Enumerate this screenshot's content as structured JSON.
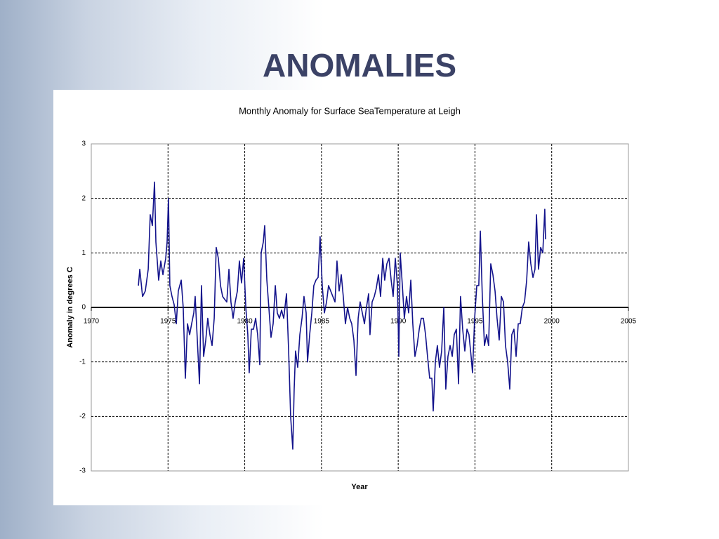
{
  "slide": {
    "title": "ANOMALIES"
  },
  "chart_data": {
    "type": "line",
    "title": "Monthly Anomaly for Surface SeaTemperature at Leigh",
    "x_label": "Year",
    "y_label": "Anomaly in degrees C",
    "xlim": [
      1970,
      2005
    ],
    "xticks": [
      1970,
      1975,
      1980,
      1985,
      1990,
      1995,
      2000,
      2005
    ],
    "ylim": [
      -3,
      3
    ],
    "yticks": [
      -3,
      -2,
      -1,
      0,
      1,
      2,
      3
    ],
    "grid": true,
    "x": [
      1973.07,
      1973.16,
      1973.34,
      1973.52,
      1973.71,
      1973.84,
      1973.98,
      1974.12,
      1974.21,
      1974.39,
      1974.53,
      1974.67,
      1974.85,
      1974.94,
      1975.03,
      1975.12,
      1975.26,
      1975.4,
      1975.54,
      1975.67,
      1975.86,
      1975.99,
      1976.13,
      1976.27,
      1976.41,
      1976.54,
      1976.68,
      1976.77,
      1976.91,
      1977.05,
      1977.18,
      1977.32,
      1977.46,
      1977.59,
      1977.73,
      1977.87,
      1978.01,
      1978.14,
      1978.28,
      1978.42,
      1978.56,
      1978.69,
      1978.83,
      1978.97,
      1979.1,
      1979.24,
      1979.38,
      1979.52,
      1979.65,
      1979.79,
      1979.93,
      1980.07,
      1980.2,
      1980.29,
      1980.43,
      1980.57,
      1980.71,
      1980.84,
      1980.98,
      1981.07,
      1981.21,
      1981.3,
      1981.44,
      1981.57,
      1981.71,
      1981.85,
      1981.99,
      1982.12,
      1982.26,
      1982.4,
      1982.54,
      1982.72,
      1982.86,
      1982.99,
      1983.13,
      1983.22,
      1983.31,
      1983.45,
      1983.59,
      1983.73,
      1983.86,
      1984.0,
      1984.09,
      1984.23,
      1984.37,
      1984.5,
      1984.64,
      1984.78,
      1984.91,
      1985.05,
      1985.19,
      1985.33,
      1985.46,
      1985.6,
      1985.74,
      1985.88,
      1986.01,
      1986.15,
      1986.29,
      1986.42,
      1986.56,
      1986.7,
      1986.84,
      1986.97,
      1987.11,
      1987.25,
      1987.39,
      1987.52,
      1987.66,
      1987.8,
      1987.93,
      1988.07,
      1988.16,
      1988.3,
      1988.44,
      1988.57,
      1988.71,
      1988.85,
      1988.99,
      1989.12,
      1989.26,
      1989.4,
      1989.54,
      1989.67,
      1989.81,
      1989.95,
      1990.04,
      1990.13,
      1990.27,
      1990.4,
      1990.54,
      1990.68,
      1990.82,
      1990.95,
      1991.09,
      1991.23,
      1991.37,
      1991.5,
      1991.64,
      1991.78,
      1991.91,
      1992.05,
      1992.19,
      1992.28,
      1992.42,
      1992.55,
      1992.69,
      1992.83,
      1992.97,
      1993.1,
      1993.24,
      1993.38,
      1993.52,
      1993.65,
      1993.79,
      1993.93,
      1994.06,
      1994.2,
      1994.34,
      1994.48,
      1994.61,
      1994.75,
      1994.84,
      1994.98,
      1995.12,
      1995.25,
      1995.35,
      1995.48,
      1995.62,
      1995.76,
      1995.89,
      1996.03,
      1996.17,
      1996.31,
      1996.44,
      1996.58,
      1996.72,
      1996.86,
      1996.99,
      1997.13,
      1997.27,
      1997.4,
      1997.54,
      1997.68,
      1997.82,
      1997.95,
      1998.09,
      1998.23,
      1998.37,
      1998.5,
      1998.64,
      1998.78,
      1998.91,
      1999.01,
      1999.14,
      1999.28,
      1999.42,
      1999.55,
      1999.6
    ],
    "series": [
      {
        "color": "#14148c",
        "values": [
          0.4,
          0.7,
          0.2,
          0.3,
          0.7,
          1.7,
          1.5,
          2.3,
          1.2,
          0.5,
          0.85,
          0.6,
          0.9,
          1.2,
          2.0,
          0.4,
          0.2,
          0.05,
          -0.3,
          0.3,
          0.5,
          0.0,
          -1.3,
          -0.3,
          -0.5,
          -0.3,
          -0.1,
          0.2,
          -0.6,
          -1.4,
          0.4,
          -0.9,
          -0.6,
          -0.2,
          -0.5,
          -0.7,
          -0.2,
          1.1,
          0.9,
          0.4,
          0.2,
          0.15,
          0.1,
          0.7,
          0.1,
          -0.2,
          0.1,
          0.3,
          0.85,
          0.45,
          0.9,
          0.0,
          -0.5,
          -1.2,
          -0.4,
          -0.4,
          -0.2,
          -0.5,
          -1.05,
          1.0,
          1.2,
          1.5,
          0.5,
          0.0,
          -0.55,
          -0.3,
          0.4,
          -0.1,
          -0.2,
          -0.05,
          -0.2,
          0.25,
          -0.8,
          -2.0,
          -2.6,
          -1.5,
          -0.8,
          -1.1,
          -0.5,
          -0.2,
          0.2,
          -0.1,
          -1.0,
          -0.5,
          -0.1,
          0.4,
          0.5,
          0.55,
          1.3,
          0.4,
          -0.1,
          0.1,
          0.4,
          0.3,
          0.2,
          0.1,
          0.85,
          0.3,
          0.6,
          0.2,
          -0.3,
          0.0,
          -0.2,
          -0.3,
          -0.6,
          -1.25,
          -0.2,
          0.1,
          -0.1,
          -0.3,
          0.0,
          0.25,
          -0.5,
          0.1,
          0.2,
          0.35,
          0.6,
          0.2,
          0.9,
          0.5,
          0.8,
          0.9,
          0.5,
          0.2,
          0.9,
          0.4,
          -0.9,
          1.0,
          0.4,
          -0.2,
          0.2,
          -0.1,
          0.5,
          -0.3,
          -0.9,
          -0.7,
          -0.4,
          -0.2,
          -0.2,
          -0.5,
          -0.9,
          -1.3,
          -1.3,
          -1.9,
          -1.0,
          -0.7,
          -1.1,
          -0.8,
          0.0,
          -1.5,
          -0.9,
          -0.7,
          -0.9,
          -0.5,
          -0.4,
          -1.4,
          0.2,
          -0.4,
          -0.8,
          -0.4,
          -0.5,
          -0.9,
          -1.2,
          -0.2,
          0.4,
          0.4,
          1.4,
          0.2,
          -0.7,
          -0.5,
          -0.7,
          0.8,
          0.6,
          0.3,
          -0.2,
          -0.6,
          0.2,
          0.1,
          -0.7,
          -1.0,
          -1.5,
          -0.5,
          -0.4,
          -0.9,
          -0.3,
          -0.3,
          0.0,
          0.1,
          0.5,
          1.2,
          0.8,
          0.55,
          0.7,
          1.7,
          0.7,
          1.1,
          1.0,
          1.8,
          1.25
        ]
      }
    ]
  }
}
